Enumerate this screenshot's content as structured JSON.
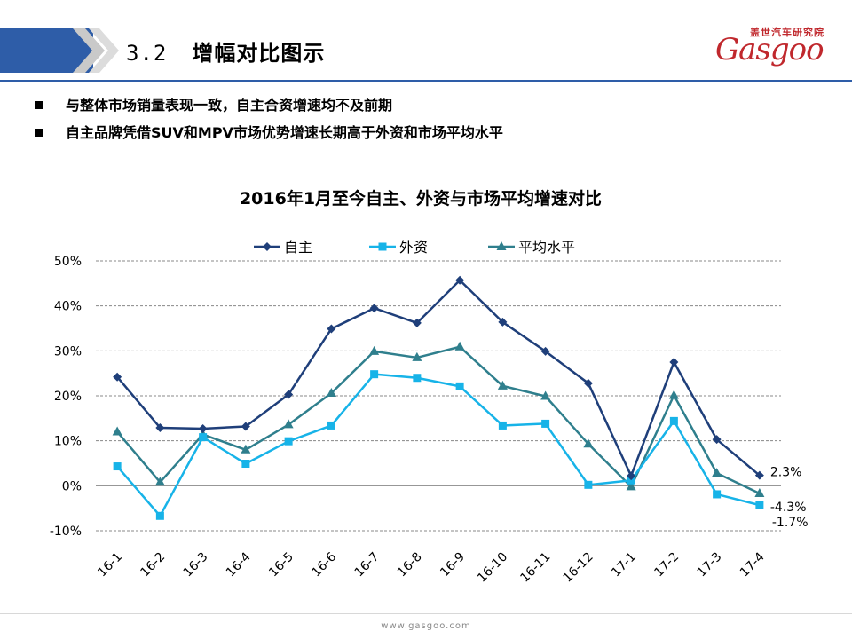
{
  "header": {
    "section_number": "3.2",
    "section_title": "增幅对比图示",
    "brand_color": "#2e5da8"
  },
  "logo": {
    "cn_text": "盖世汽车研究院",
    "en_text": "Gasgoo"
  },
  "bullets": [
    "与整体市场销量表现一致，自主合资增速均不及前期",
    "自主品牌凭借SUV和MPV市场优势增速长期高于外资和市场平均水平"
  ],
  "footer": {
    "url": "www.gasgoo.com"
  },
  "chart_data": {
    "type": "line",
    "title": "2016年1月至今自主、外资与市场平均增速对比",
    "categories": [
      "16-1",
      "16-2",
      "16-3",
      "16-4",
      "16-5",
      "16-6",
      "16-7",
      "16-8",
      "16-9",
      "16-10",
      "16-11",
      "16-12",
      "17-1",
      "17-2",
      "17-3",
      "17-4"
    ],
    "y_ticks": [
      "50%",
      "40%",
      "30%",
      "20%",
      "10%",
      "0%",
      "-10%"
    ],
    "ylim": [
      -10,
      50
    ],
    "grid": true,
    "legend_position": "top",
    "series": [
      {
        "name": "自主",
        "color": "#1f3f7a",
        "marker": "diamond",
        "values": [
          24.2,
          12.9,
          12.7,
          13.2,
          20.3,
          34.9,
          39.5,
          36.2,
          45.7,
          36.4,
          29.9,
          22.8,
          2.2,
          27.5,
          10.3,
          2.3
        ]
      },
      {
        "name": "外资",
        "color": "#17b3e8",
        "marker": "square",
        "values": [
          4.3,
          -6.7,
          10.8,
          4.9,
          9.9,
          13.4,
          24.8,
          24.0,
          22.1,
          13.4,
          13.8,
          0.2,
          1.2,
          14.4,
          -1.9,
          -4.3
        ]
      },
      {
        "name": "平均水平",
        "color": "#2f7f8d",
        "marker": "triangle",
        "values": [
          12.0,
          0.8,
          11.4,
          8.0,
          13.6,
          20.6,
          29.9,
          28.5,
          30.9,
          22.2,
          19.9,
          9.3,
          -0.2,
          20.1,
          2.8,
          -1.7
        ]
      }
    ],
    "end_labels": [
      "2.3%",
      "-4.3%",
      "-1.7%"
    ]
  }
}
